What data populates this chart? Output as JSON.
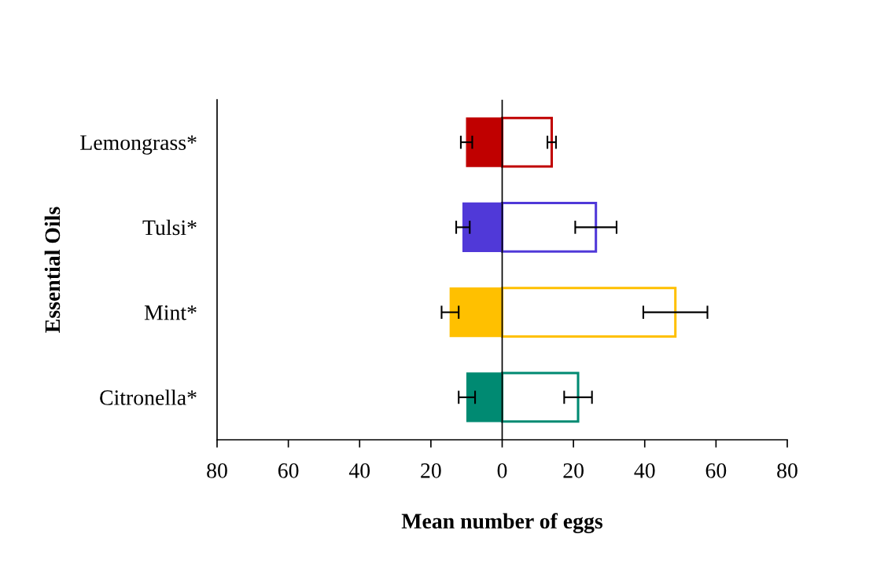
{
  "chart_data": {
    "type": "bar",
    "orientation": "horizontal",
    "stacked": true,
    "xlabel": "Mean number of eggs",
    "ylabel": "Essential Oils",
    "categories": [
      "Lemongrass*",
      "Tulsi*",
      "Mint*",
      "Citronella*"
    ],
    "series": [
      {
        "colors": [
          "#c00000",
          "#5039d8",
          "#ffc000",
          "#008a72"
        ],
        "values": [
          -10,
          -11,
          -14.6,
          -9.9
        ],
        "errors": [
          1.6,
          1.9,
          2.4,
          2.3
        ]
      },
      {
        "colors": [
          "#c00000",
          "#5039d8",
          "#ffc000",
          "#008a72"
        ],
        "values": [
          13.9,
          26.3,
          48.6,
          21.3
        ],
        "errors": [
          1.2,
          5.8,
          9.0,
          3.9
        ]
      }
    ],
    "xlim": [
      -80,
      80
    ],
    "xticks": [
      {
        "value": -80,
        "label": "80"
      },
      {
        "value": -60,
        "label": "60"
      },
      {
        "value": -40,
        "label": "40"
      },
      {
        "value": -20,
        "label": "20"
      },
      0,
      20,
      40,
      60,
      80
    ],
    "ref_lines": [
      {
        "axis": "x",
        "value": 0,
        "color": "#000000"
      }
    ],
    "grid": false,
    "legend": false
  }
}
